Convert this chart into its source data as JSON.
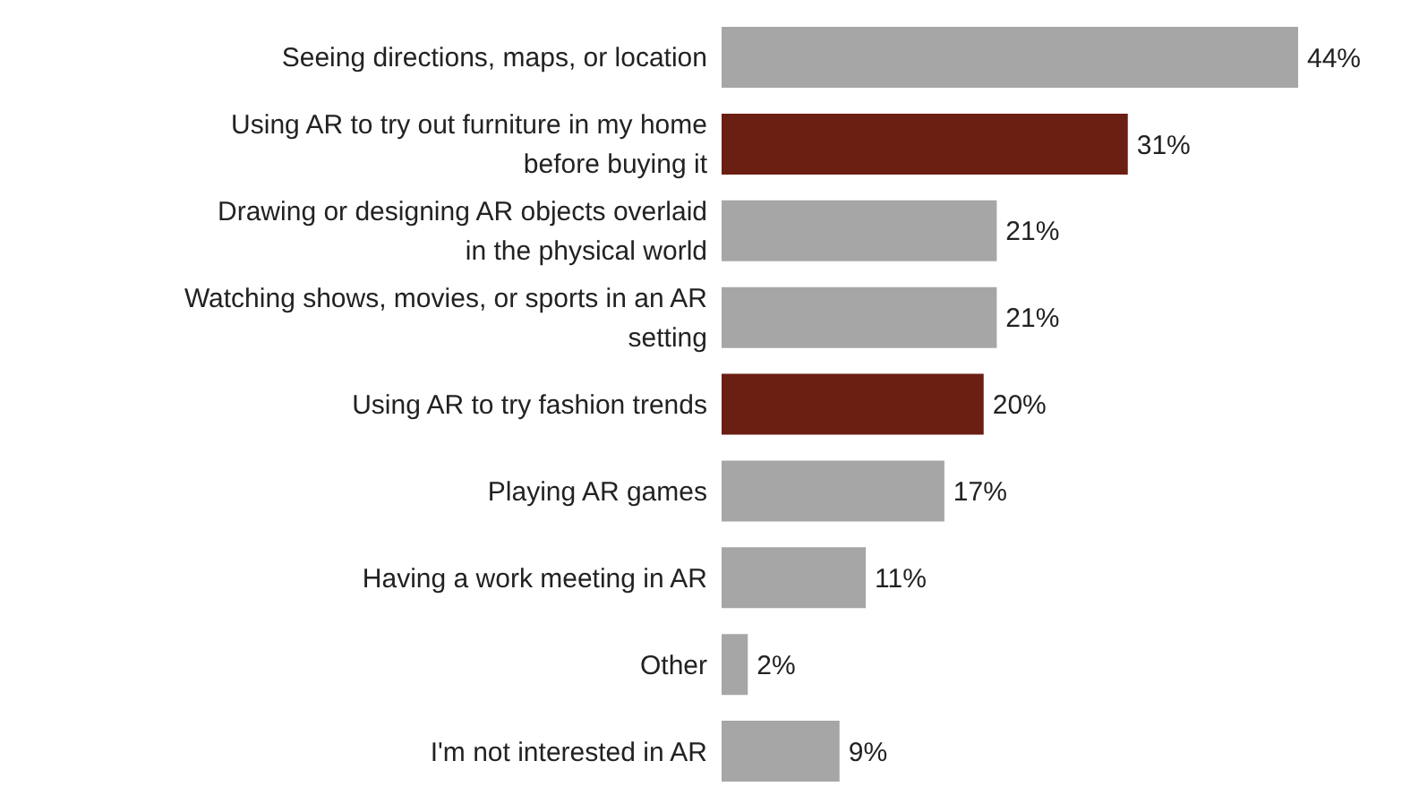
{
  "chart_data": {
    "type": "bar",
    "orientation": "horizontal",
    "categories": [
      "Seeing directions, maps, or location",
      "Using AR to try out furniture in my home before buying it",
      "Drawing or designing AR objects overlaid in the physical world",
      "Watching shows, movies, or sports in an AR setting",
      "Using AR to try fashion trends",
      "Playing AR games",
      "Having a work meeting in AR",
      "Other",
      "I'm not interested in AR"
    ],
    "values": [
      44,
      31,
      21,
      21,
      20,
      17,
      11,
      2,
      9
    ],
    "colors": [
      "#a6a6a6",
      "#6b1e12",
      "#a6a6a6",
      "#a6a6a6",
      "#6b1e12",
      "#a6a6a6",
      "#a6a6a6",
      "#a6a6a6",
      "#a6a6a6"
    ],
    "value_labels": [
      "44%",
      "31%",
      "21%",
      "21%",
      "20%",
      "17%",
      "11%",
      "2%",
      "9%"
    ],
    "grid": false,
    "legend": false
  }
}
